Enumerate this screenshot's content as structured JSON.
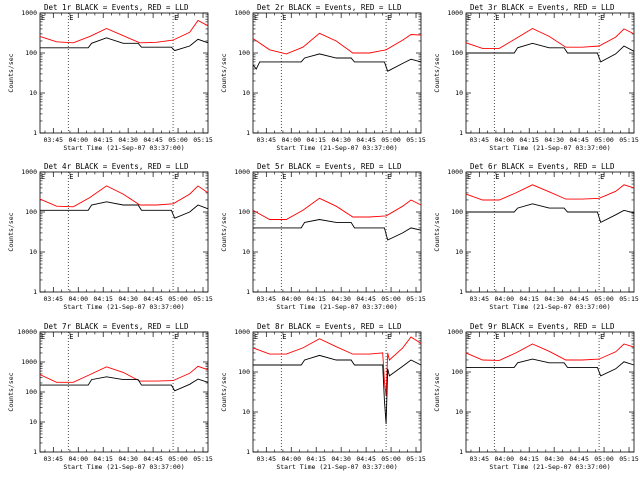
{
  "figure_title": "",
  "chart_data": [
    {
      "id": "det1",
      "type": "line",
      "title": "Det 1r BLACK = Events, RED = LLD",
      "xlabel": "Start Time (21-Sep-07 03:37:00)",
      "ylabel": "Counts/sec",
      "yscale": "log",
      "ylim": [
        1,
        1000
      ],
      "xlim_minutes": [
        0,
        101
      ],
      "x_ticks": [
        "03:45",
        "04:00",
        "04:15",
        "04:30",
        "04:45",
        "05:00",
        "05:15"
      ],
      "y_ticks": [
        "1",
        "10",
        "100",
        "1000"
      ],
      "vlines_minutes": [
        17,
        80
      ],
      "vline_labels": [
        "E",
        "E"
      ],
      "series": [
        {
          "name": "LLD",
          "color": "#ff0000",
          "minutes": [
            0,
            10,
            20,
            30,
            40,
            50,
            60,
            70,
            80,
            90,
            95,
            101
          ],
          "values": [
            260,
            190,
            180,
            260,
            410,
            270,
            180,
            185,
            210,
            330,
            650,
            480
          ]
        },
        {
          "name": "Events",
          "color": "#000000",
          "minutes": [
            0,
            10,
            20,
            29,
            31,
            40,
            50,
            59,
            61,
            70,
            79,
            81,
            90,
            95,
            101
          ],
          "values": [
            135,
            135,
            135,
            135,
            175,
            240,
            175,
            175,
            140,
            140,
            140,
            115,
            150,
            220,
            180
          ]
        }
      ]
    },
    {
      "id": "det2",
      "type": "line",
      "title": "Det 2r BLACK = Events, RED = LLD",
      "xlabel": "Start Time (21-Sep-07 03:37:00)",
      "ylabel": "Counts/sec",
      "yscale": "log",
      "ylim": [
        1,
        1000
      ],
      "xlim_minutes": [
        0,
        101
      ],
      "x_ticks": [
        "03:45",
        "04:00",
        "04:15",
        "04:30",
        "04:45",
        "05:00",
        "05:15"
      ],
      "y_ticks": [
        "1",
        "10",
        "100",
        "1000"
      ],
      "vlines_minutes": [
        17,
        80
      ],
      "vline_labels": [
        "E",
        "E"
      ],
      "series": [
        {
          "name": "LLD",
          "color": "#ff0000",
          "minutes": [
            0,
            10,
            20,
            30,
            40,
            50,
            60,
            70,
            80,
            90,
            95,
            101
          ],
          "values": [
            230,
            120,
            95,
            140,
            310,
            200,
            100,
            100,
            120,
            210,
            290,
            280
          ]
        },
        {
          "name": "Events",
          "color": "#000000",
          "minutes": [
            0,
            2,
            4,
            10,
            20,
            29,
            31,
            40,
            50,
            59,
            61,
            70,
            79,
            81,
            90,
            95,
            101
          ],
          "values": [
            50,
            40,
            60,
            60,
            60,
            60,
            75,
            95,
            75,
            75,
            60,
            60,
            60,
            35,
            55,
            70,
            60
          ]
        }
      ]
    },
    {
      "id": "det3",
      "type": "line",
      "title": "Det 3r BLACK = Events, RED = LLD",
      "xlabel": "Start Time (21-Sep-07 03:37:00)",
      "ylabel": "Counts/sec",
      "yscale": "log",
      "ylim": [
        1,
        1000
      ],
      "xlim_minutes": [
        0,
        101
      ],
      "x_ticks": [
        "03:45",
        "04:00",
        "04:15",
        "04:30",
        "04:45",
        "05:00",
        "05:15"
      ],
      "y_ticks": [
        "1",
        "10",
        "100",
        "1000"
      ],
      "vlines_minutes": [
        17,
        80
      ],
      "vline_labels": [
        "E",
        "E"
      ],
      "series": [
        {
          "name": "LLD",
          "color": "#ff0000",
          "minutes": [
            0,
            10,
            20,
            30,
            40,
            50,
            60,
            70,
            80,
            90,
            95,
            101
          ],
          "values": [
            180,
            130,
            130,
            230,
            410,
            260,
            140,
            140,
            150,
            250,
            400,
            300
          ]
        },
        {
          "name": "Events",
          "color": "#000000",
          "minutes": [
            0,
            10,
            20,
            29,
            31,
            40,
            50,
            59,
            61,
            70,
            79,
            81,
            90,
            95,
            101
          ],
          "values": [
            100,
            100,
            100,
            100,
            135,
            175,
            135,
            135,
            100,
            100,
            100,
            60,
            95,
            150,
            110
          ]
        }
      ]
    },
    {
      "id": "det4",
      "type": "line",
      "title": "Det 4r BLACK = Events, RED = LLD",
      "xlabel": "Start Time (21-Sep-07 03:37:00)",
      "ylabel": "Counts/sec",
      "yscale": "log",
      "ylim": [
        1,
        1000
      ],
      "xlim_minutes": [
        0,
        101
      ],
      "x_ticks": [
        "03:45",
        "04:00",
        "04:15",
        "04:30",
        "04:45",
        "05:00",
        "05:15"
      ],
      "y_ticks": [
        "1",
        "10",
        "100",
        "1000"
      ],
      "vlines_minutes": [
        17,
        80
      ],
      "vline_labels": [
        "E",
        "E"
      ],
      "series": [
        {
          "name": "LLD",
          "color": "#ff0000",
          "minutes": [
            0,
            10,
            20,
            30,
            40,
            50,
            60,
            70,
            80,
            90,
            95,
            101
          ],
          "values": [
            210,
            140,
            135,
            230,
            450,
            280,
            150,
            150,
            160,
            280,
            450,
            300
          ]
        },
        {
          "name": "Events",
          "color": "#000000",
          "minutes": [
            0,
            10,
            20,
            29,
            31,
            40,
            50,
            59,
            61,
            70,
            79,
            81,
            90,
            95,
            101
          ],
          "values": [
            110,
            110,
            110,
            110,
            150,
            180,
            150,
            150,
            110,
            110,
            110,
            70,
            100,
            150,
            120
          ]
        }
      ]
    },
    {
      "id": "det5",
      "type": "line",
      "title": "Det 5r BLACK = Events, RED = LLD",
      "xlabel": "Start Time (21-Sep-07 03:37:00)",
      "ylabel": "Counts/sec",
      "yscale": "log",
      "ylim": [
        1,
        1000
      ],
      "xlim_minutes": [
        0,
        101
      ],
      "x_ticks": [
        "03:45",
        "04:00",
        "04:15",
        "04:30",
        "04:45",
        "05:00",
        "05:15"
      ],
      "y_ticks": [
        "1",
        "10",
        "100",
        "1000"
      ],
      "vlines_minutes": [
        17,
        80
      ],
      "vline_labels": [
        "E",
        "E"
      ],
      "series": [
        {
          "name": "LLD",
          "color": "#ff0000",
          "minutes": [
            0,
            10,
            20,
            30,
            40,
            50,
            60,
            70,
            80,
            90,
            95,
            101
          ],
          "values": [
            110,
            65,
            65,
            110,
            220,
            140,
            75,
            75,
            80,
            140,
            200,
            150
          ]
        },
        {
          "name": "Events",
          "color": "#000000",
          "minutes": [
            0,
            10,
            20,
            29,
            31,
            40,
            50,
            59,
            61,
            70,
            79,
            81,
            90,
            95,
            101
          ],
          "values": [
            40,
            40,
            40,
            40,
            55,
            65,
            55,
            55,
            40,
            40,
            40,
            20,
            30,
            40,
            35
          ]
        }
      ]
    },
    {
      "id": "det6",
      "type": "line",
      "title": "Det 6r BLACK = Events, RED = LLD",
      "xlabel": "Start Time (21-Sep-07 03:37:00)",
      "ylabel": "Counts/sec",
      "yscale": "log",
      "ylim": [
        1,
        1000
      ],
      "xlim_minutes": [
        0,
        101
      ],
      "x_ticks": [
        "03:45",
        "04:00",
        "04:15",
        "04:30",
        "04:45",
        "05:00",
        "05:15"
      ],
      "y_ticks": [
        "1",
        "10",
        "100",
        "1000"
      ],
      "vlines_minutes": [
        17,
        80
      ],
      "vline_labels": [
        "E",
        "E"
      ],
      "series": [
        {
          "name": "LLD",
          "color": "#ff0000",
          "minutes": [
            0,
            10,
            20,
            30,
            40,
            50,
            60,
            70,
            80,
            90,
            95,
            101
          ],
          "values": [
            280,
            200,
            200,
            300,
            480,
            320,
            210,
            210,
            220,
            330,
            480,
            400
          ]
        },
        {
          "name": "Events",
          "color": "#000000",
          "minutes": [
            0,
            10,
            20,
            29,
            31,
            40,
            50,
            59,
            61,
            70,
            79,
            81,
            90,
            95,
            101
          ],
          "values": [
            100,
            100,
            100,
            100,
            125,
            160,
            125,
            125,
            100,
            100,
            100,
            55,
            85,
            110,
            95
          ]
        }
      ]
    },
    {
      "id": "det7",
      "type": "line",
      "title": "Det 7r BLACK = Events, RED = LLD",
      "xlabel": "Start Time (21-Sep-07 03:37:00)",
      "ylabel": "Counts/sec",
      "yscale": "log",
      "ylim": [
        1,
        10000
      ],
      "xlim_minutes": [
        0,
        101
      ],
      "x_ticks": [
        "03:45",
        "04:00",
        "04:15",
        "04:30",
        "04:45",
        "05:00",
        "05:15"
      ],
      "y_ticks": [
        "1",
        "10",
        "100",
        "1000",
        "10000"
      ],
      "vlines_minutes": [
        17,
        80
      ],
      "vline_labels": [
        "E",
        "E"
      ],
      "series": [
        {
          "name": "LLD",
          "color": "#ff0000",
          "minutes": [
            0,
            10,
            20,
            30,
            40,
            50,
            60,
            70,
            80,
            90,
            95,
            101
          ],
          "values": [
            380,
            210,
            210,
            380,
            690,
            450,
            230,
            230,
            240,
            420,
            720,
            550
          ]
        },
        {
          "name": "Events",
          "color": "#000000",
          "minutes": [
            0,
            10,
            20,
            29,
            31,
            40,
            50,
            59,
            61,
            70,
            79,
            81,
            90,
            95,
            101
          ],
          "values": [
            170,
            170,
            170,
            170,
            260,
            320,
            260,
            260,
            170,
            170,
            170,
            110,
            180,
            270,
            210
          ]
        }
      ]
    },
    {
      "id": "det8",
      "type": "line",
      "title": "Det 8r BLACK = Events, RED = LLD",
      "xlabel": "Start Time (21-Sep-07 03:37:00)",
      "ylabel": "Counts/sec",
      "yscale": "log",
      "ylim": [
        1,
        1000
      ],
      "xlim_minutes": [
        0,
        101
      ],
      "x_ticks": [
        "03:45",
        "04:00",
        "04:15",
        "04:30",
        "04:45",
        "05:00",
        "05:15"
      ],
      "y_ticks": [
        "1",
        "10",
        "100",
        "1000"
      ],
      "vlines_minutes": [
        17,
        80
      ],
      "vline_labels": [
        "E",
        "E"
      ],
      "series": [
        {
          "name": "LLD",
          "color": "#ff0000",
          "minutes": [
            0,
            10,
            20,
            30,
            40,
            50,
            60,
            70,
            78,
            79,
            80,
            81,
            82,
            90,
            95,
            101
          ],
          "values": [
            400,
            280,
            280,
            400,
            680,
            430,
            280,
            280,
            300,
            60,
            25,
            300,
            200,
            400,
            750,
            520
          ]
        },
        {
          "name": "Events",
          "color": "#000000",
          "minutes": [
            0,
            10,
            20,
            29,
            31,
            40,
            50,
            59,
            61,
            70,
            78,
            79,
            80,
            81,
            82,
            90,
            95,
            101
          ],
          "values": [
            150,
            150,
            150,
            150,
            200,
            260,
            200,
            200,
            150,
            150,
            150,
            20,
            5,
            120,
            80,
            140,
            200,
            150
          ]
        }
      ]
    },
    {
      "id": "det9",
      "type": "line",
      "title": "Det 9r BLACK = Events, RED = LLD",
      "xlabel": "Start Time (21-Sep-07 03:37:00)",
      "ylabel": "Counts/sec",
      "yscale": "log",
      "ylim": [
        1,
        1000
      ],
      "xlim_minutes": [
        0,
        101
      ],
      "x_ticks": [
        "03:45",
        "04:00",
        "04:15",
        "04:30",
        "04:45",
        "05:00",
        "05:15"
      ],
      "y_ticks": [
        "1",
        "10",
        "100",
        "1000"
      ],
      "vlines_minutes": [
        17,
        80
      ],
      "vline_labels": [
        "E",
        "E"
      ],
      "series": [
        {
          "name": "LLD",
          "color": "#ff0000",
          "minutes": [
            0,
            10,
            20,
            30,
            40,
            50,
            60,
            70,
            80,
            90,
            95,
            101
          ],
          "values": [
            300,
            200,
            195,
            300,
            500,
            330,
            200,
            200,
            210,
            320,
            500,
            420
          ]
        },
        {
          "name": "Events",
          "color": "#000000",
          "minutes": [
            0,
            10,
            20,
            29,
            31,
            40,
            50,
            59,
            61,
            70,
            79,
            81,
            90,
            95,
            101
          ],
          "values": [
            130,
            130,
            130,
            130,
            170,
            210,
            170,
            170,
            130,
            130,
            130,
            80,
            120,
            180,
            150
          ]
        }
      ]
    }
  ]
}
